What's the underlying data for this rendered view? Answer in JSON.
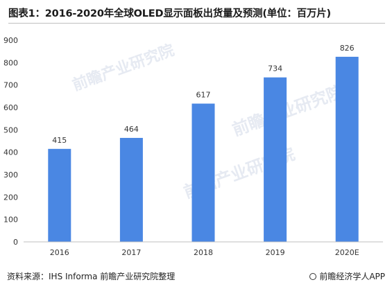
{
  "title": "图表1：2016-2020年全球OLED显示面板出货量及预测(单位：百万片)",
  "source": "资料来源：IHS Informa 前瞻产业研究院整理",
  "brand": "前瞻经济学人APP",
  "watermark": "前瞻产业研究院",
  "colors": {
    "bar": "#4a87e3",
    "axis": "#bfbfbf",
    "text": "#333333"
  },
  "chart_data": {
    "type": "bar",
    "categories": [
      "2016",
      "2017",
      "2018",
      "2019",
      "2020E"
    ],
    "values": [
      415,
      464,
      617,
      734,
      826
    ],
    "ylim": [
      0,
      900
    ],
    "yticks": [
      0,
      100,
      200,
      300,
      400,
      500,
      600,
      700,
      800,
      900
    ],
    "data_labels": [
      "415",
      "464",
      "617",
      "734",
      "826"
    ],
    "grid": false,
    "legend": "none"
  }
}
